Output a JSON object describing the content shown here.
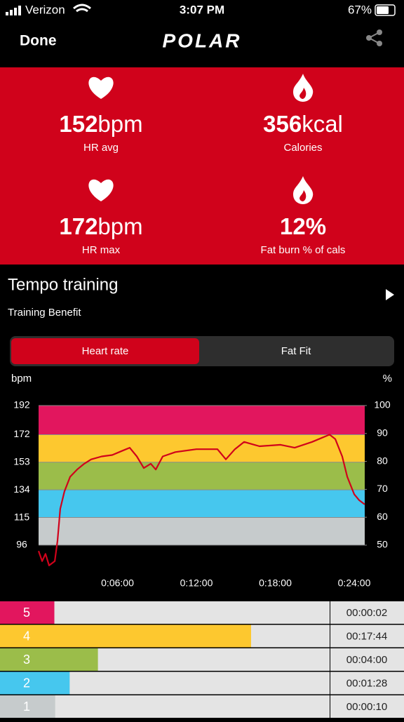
{
  "status_bar": {
    "carrier": "Verizon",
    "time": "3:07 PM",
    "battery": "67%"
  },
  "header": {
    "done": "Done",
    "logo": "POLAR"
  },
  "stats": [
    {
      "value": 152,
      "unit": "bpm",
      "label": "HR avg",
      "icon": "heart"
    },
    {
      "value": 356,
      "unit": "kcal",
      "label": "Calories",
      "icon": "flame"
    },
    {
      "value": 172,
      "unit": "bpm",
      "label": "HR max",
      "icon": "heart"
    },
    {
      "value": 12,
      "unit": "%",
      "label": "Fat burn % of cals",
      "icon": "flame",
      "bold_unit": true
    }
  ],
  "training": {
    "title": "Tempo training",
    "subtitle": "Training Benefit"
  },
  "tabs": [
    {
      "label": "Heart rate",
      "selected": true
    },
    {
      "label": "Fat Fit",
      "selected": false
    }
  ],
  "chart": {
    "type": "line",
    "y_label": "bpm",
    "y2_label": "%",
    "color": "#d0021b",
    "x": [
      0,
      0.27,
      0.53,
      0.8,
      1.23,
      1.44,
      1.65,
      1.97,
      2.4,
      2.93,
      3.47,
      4.0,
      4.8,
      5.6,
      6.4,
      6.93,
      7.47,
      8.0,
      8.53,
      8.91,
      9.44,
      10.4,
      12.0,
      13.6,
      14.24,
      14.93,
      15.63,
      16.8,
      18.4,
      19.47,
      20.8,
      22.13,
      22.56,
      23.09,
      23.47,
      24.0,
      24.37,
      24.8
    ],
    "values": [
      92,
      85,
      90,
      82,
      85,
      99,
      121,
      133,
      143,
      148,
      152,
      155,
      157,
      158,
      161,
      163,
      157,
      149,
      152,
      148,
      157,
      160,
      162,
      162,
      155,
      162,
      167,
      164,
      165,
      163,
      167,
      172,
      169,
      157,
      143,
      131,
      127,
      124
    ],
    "xlim": [
      0,
      24.8
    ],
    "xticks": [
      {
        "value": 6,
        "label": "0:06:00"
      },
      {
        "value": 12,
        "label": "0:12:00"
      },
      {
        "value": 18,
        "label": "0:18:00"
      },
      {
        "value": 24,
        "label": "0:24:00"
      }
    ],
    "ylim": [
      81,
      192
    ],
    "yticks": [
      192,
      172,
      153,
      134,
      115,
      96
    ],
    "y2lim": [
      42.2,
      100
    ],
    "y2ticks": [
      100,
      90,
      80,
      70,
      60,
      50
    ],
    "zone_colors": [
      "#e2165e",
      "#fdc82f",
      "#9bbd4a",
      "#46c7ee",
      "#c6cbcc"
    ]
  },
  "zones": [
    {
      "label": "5",
      "time": "00:00:02",
      "seconds": 2,
      "color": "#e2165e"
    },
    {
      "label": "4",
      "time": "00:17:44",
      "seconds": 1064,
      "color": "#fdc82f"
    },
    {
      "label": "3",
      "time": "00:04:00",
      "seconds": 240,
      "color": "#9bbd4a"
    },
    {
      "label": "2",
      "time": "00:01:28",
      "seconds": 88,
      "color": "#46c7ee"
    },
    {
      "label": "1",
      "time": "00:00:10",
      "seconds": 10,
      "color": "#c6cbcc"
    }
  ]
}
